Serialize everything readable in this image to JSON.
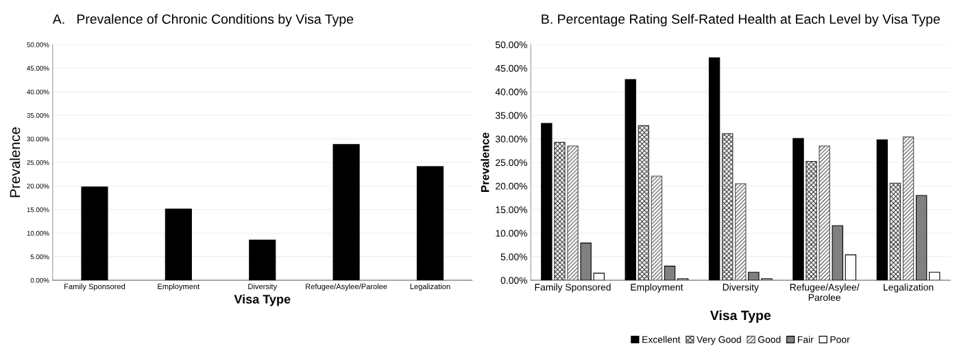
{
  "chart_data": [
    {
      "type": "bar",
      "title": "A.   Prevalence of Chronic Conditions by Visa Type",
      "xlabel": "Visa Type",
      "ylabel": "Prevalence",
      "categories": [
        "Family Sponsored",
        "Employment",
        "Diversity",
        "Refugee/Asylee/Parolee",
        "Legalization"
      ],
      "values": [
        19.9,
        15.2,
        8.6,
        28.9,
        24.2
      ],
      "color": "#000000",
      "ylim": [
        0,
        50
      ],
      "yticks": [
        {
          "value": 0,
          "label": "0.00%"
        },
        {
          "value": 5,
          "label": "5.00%"
        },
        {
          "value": 10,
          "label": "10.00%"
        },
        {
          "value": 15,
          "label": "15.00%"
        },
        {
          "value": 20,
          "label": "20.00%"
        },
        {
          "value": 25,
          "label": "25.00%"
        },
        {
          "value": 30,
          "label": "30.00%"
        },
        {
          "value": 35,
          "label": "35.00%"
        },
        {
          "value": 40,
          "label": "40.00%"
        },
        {
          "value": 45,
          "label": "45.00%"
        },
        {
          "value": 50,
          "label": "50.00%"
        }
      ],
      "grid": "y"
    },
    {
      "type": "bar",
      "title": "B. Percentage Rating Self-Rated Health at Each Level by Visa Type",
      "xlabel": "Visa Type",
      "ylabel": "Prevalence",
      "categories": [
        "Family Sponsored",
        "Employment",
        "Diversity",
        "Refugee/Asylee/\nParolee",
        "Legalization"
      ],
      "series": [
        {
          "name": "Excellent",
          "color": "#000000",
          "values": [
            33.3,
            42.6,
            47.2,
            30.1,
            29.8
          ]
        },
        {
          "name": "Very Good",
          "color": "#333333",
          "values": [
            29.3,
            32.8,
            31.1,
            25.2,
            20.6
          ]
        },
        {
          "name": "Good",
          "color": "#4d4d4d",
          "values": [
            28.5,
            22.1,
            20.5,
            28.5,
            30.4
          ]
        },
        {
          "name": "Fair",
          "color": "#808080",
          "values": [
            7.9,
            3.0,
            1.7,
            11.6,
            18.0
          ]
        },
        {
          "name": "Poor",
          "color": "#ffffff",
          "values": [
            1.5,
            0.3,
            0.3,
            5.4,
            1.7
          ]
        }
      ],
      "ylim": [
        0,
        50
      ],
      "yticks": [
        {
          "value": 0,
          "label": "0.00%"
        },
        {
          "value": 5,
          "label": "5.00%"
        },
        {
          "value": 10,
          "label": "10.00%"
        },
        {
          "value": 15,
          "label": "15.00%"
        },
        {
          "value": 20,
          "label": "20.00%"
        },
        {
          "value": 25,
          "label": "25.00%"
        },
        {
          "value": 30,
          "label": "30.00%"
        },
        {
          "value": 35,
          "label": "35.00%"
        },
        {
          "value": 40,
          "label": "40.00%"
        },
        {
          "value": 45,
          "label": "45.00%"
        },
        {
          "value": 50,
          "label": "50.00%"
        }
      ],
      "grid": "y",
      "legend": "bottom"
    }
  ]
}
